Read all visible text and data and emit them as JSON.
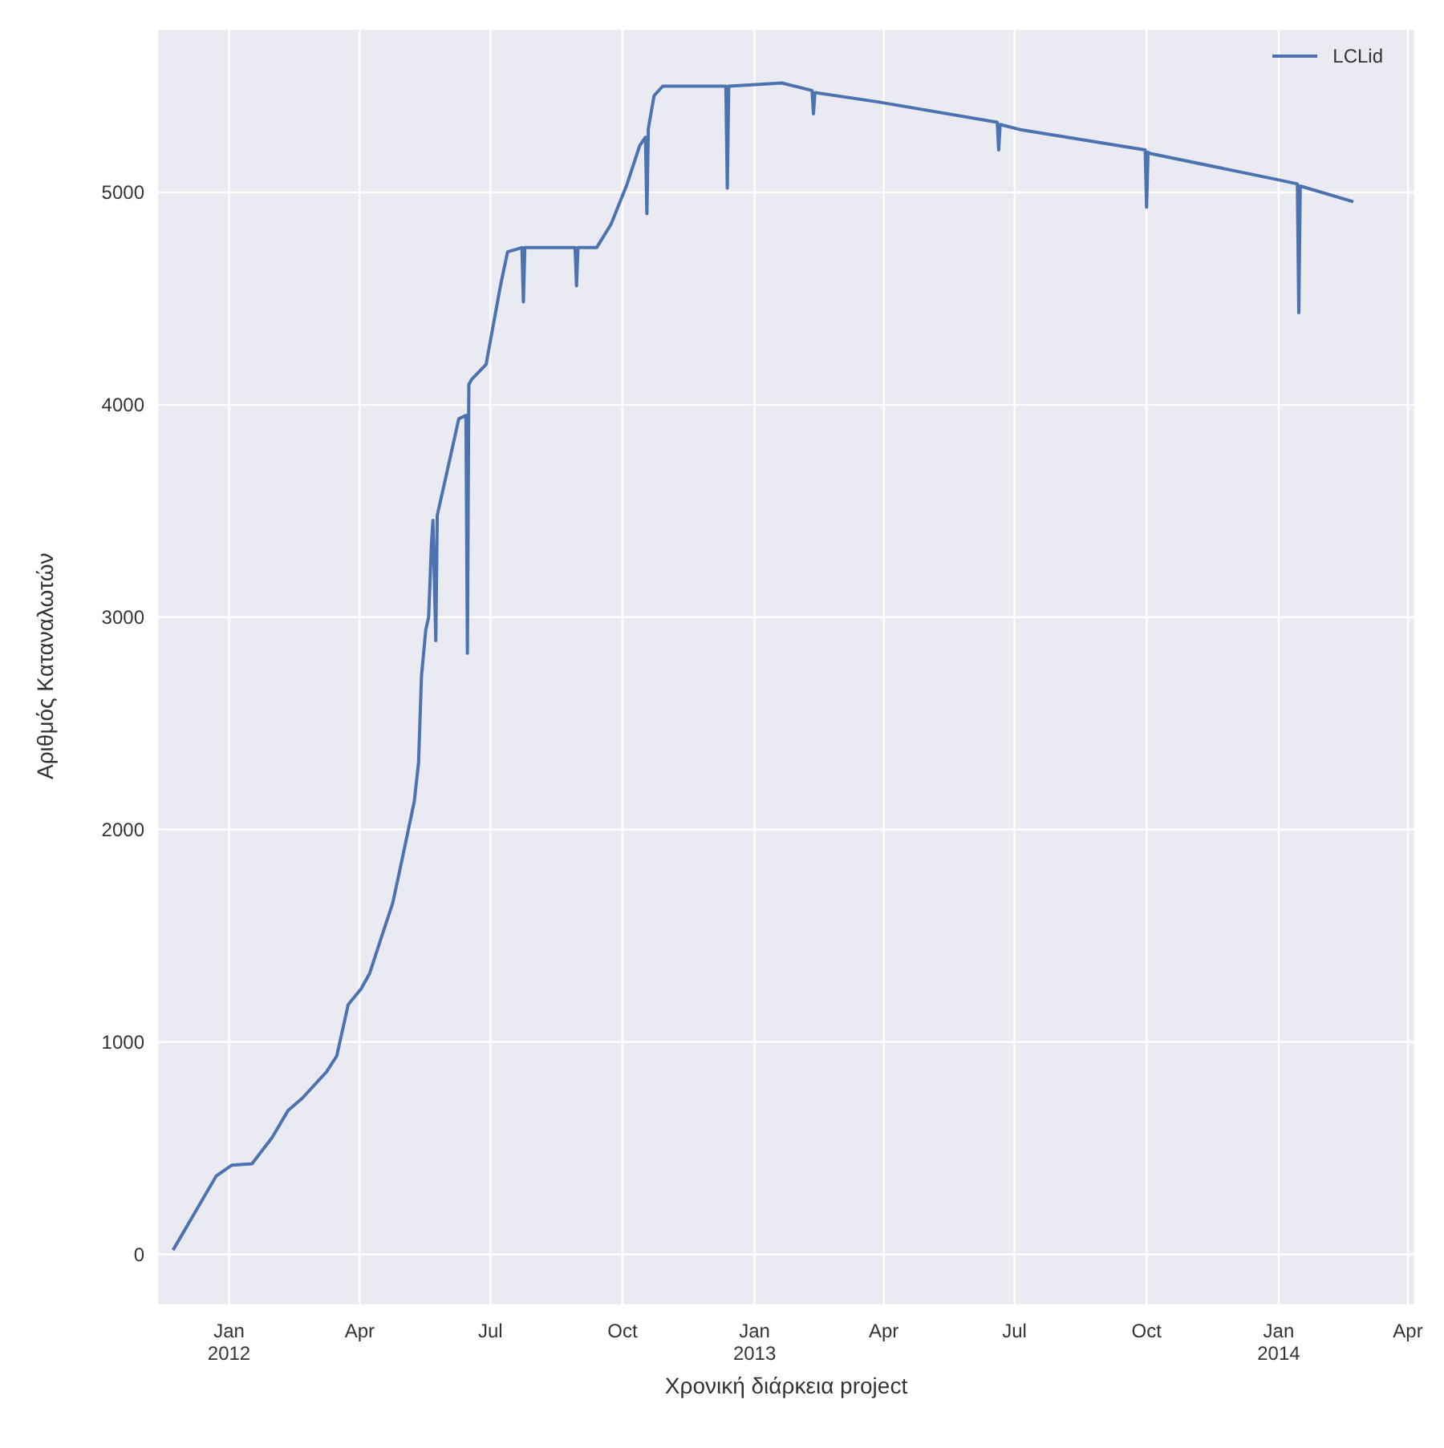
{
  "chart_data": {
    "type": "line",
    "xlabel": "Χρονική διάρκεια project",
    "ylabel": "Αριθμός Καταναλωτών",
    "legend": "top right",
    "grid": true,
    "marker": "none",
    "line_style": "solid",
    "xlim": [
      "2011-11-12",
      "2014-04-06"
    ],
    "xticks": [
      {
        "value": "2012-01-01",
        "label": "Jan\n2012"
      },
      {
        "value": "2012-04-01",
        "label": "Apr"
      },
      {
        "value": "2012-07-01",
        "label": "Jul"
      },
      {
        "value": "2012-10-01",
        "label": "Oct"
      },
      {
        "value": "2013-01-01",
        "label": "Jan\n2013"
      },
      {
        "value": "2013-04-01",
        "label": "Apr"
      },
      {
        "value": "2013-07-01",
        "label": "Jul"
      },
      {
        "value": "2013-10-01",
        "label": "Oct"
      },
      {
        "value": "2014-01-01",
        "label": "Jan\n2014"
      },
      {
        "value": "2014-04-01",
        "label": "Apr"
      }
    ],
    "ylim": [
      -240,
      5770
    ],
    "yticks": [
      0,
      1000,
      2000,
      3000,
      4000,
      5000
    ],
    "x": [
      "2011-11-23",
      "2011-12-23",
      "2012-01-03",
      "2012-01-17",
      "2012-01-31",
      "2012-02-11",
      "2012-02-21",
      "2012-03-09",
      "2012-03-16",
      "2012-03-24",
      "2012-04-02",
      "2012-04-08",
      "2012-04-15",
      "2012-04-24",
      "2012-05-01",
      "2012-05-09",
      "2012-05-12",
      "2012-05-14",
      "2012-05-17",
      "2012-05-19",
      "2012-05-21",
      "2012-05-22",
      "2012-05-24",
      "2012-05-25",
      "2012-06-01",
      "2012-06-09",
      "2012-06-14",
      "2012-06-15",
      "2012-06-16",
      "2012-06-18",
      "2012-06-28",
      "2012-07-08",
      "2012-07-13",
      "2012-07-23",
      "2012-07-24",
      "2012-07-25",
      "2012-08-29",
      "2012-08-30",
      "2012-08-31",
      "2012-09-13",
      "2012-09-23",
      "2012-10-04",
      "2012-10-13",
      "2012-10-17",
      "2012-10-18",
      "2012-10-19",
      "2012-10-23",
      "2012-10-29",
      "2012-12-12",
      "2012-12-13",
      "2012-12-14",
      "2013-01-20",
      "2013-02-10",
      "2013-02-11",
      "2013-02-12",
      "2013-03-28",
      "2013-06-19",
      "2013-06-20",
      "2013-06-21",
      "2013-07-06",
      "2013-09-30",
      "2013-10-01",
      "2013-10-02",
      "2013-10-03",
      "2014-01-01",
      "2014-01-14",
      "2014-01-15",
      "2014-01-16",
      "2014-02-22"
    ],
    "series": [
      {
        "name": "LCLid",
        "color": "#4c72b0",
        "values": [
          20,
          368,
          420,
          426,
          550,
          676,
          735,
          860,
          934,
          1176,
          1250,
          1324,
          1470,
          1654,
          1875,
          2132,
          2316,
          2720,
          2940,
          3000,
          3350,
          3456,
          2890,
          3480,
          3690,
          3934,
          3950,
          2830,
          4095,
          4120,
          4190,
          4560,
          4720,
          4740,
          4485,
          4740,
          4740,
          4560,
          4740,
          4740,
          4850,
          5035,
          5220,
          5260,
          4900,
          5300,
          5455,
          5500,
          5500,
          5020,
          5500,
          5515,
          5480,
          5370,
          5470,
          5426,
          5330,
          5200,
          5320,
          5294,
          5200,
          4930,
          5190,
          5184,
          5059,
          5040,
          4434,
          5030,
          4956
        ]
      }
    ]
  }
}
